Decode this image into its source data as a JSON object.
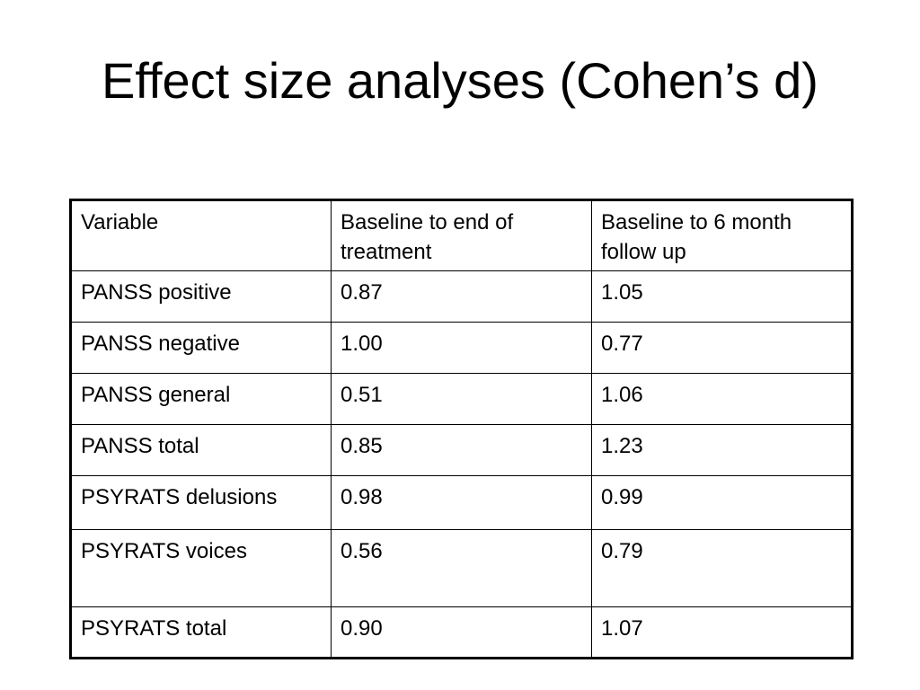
{
  "title": "Effect size analyses (Cohen’s d)",
  "table": {
    "header": [
      "Variable",
      "Baseline to end of treatment",
      "Baseline to 6 month follow up"
    ],
    "rows": [
      [
        "PANSS positive",
        "0.87",
        "1.05"
      ],
      [
        "PANSS negative",
        "1.00",
        "0.77"
      ],
      [
        "PANSS general",
        "0.51",
        "1.06"
      ],
      [
        "PANSS total",
        "0.85",
        "1.23"
      ],
      [
        "PSYRATS delusions",
        "0.98",
        "0.99"
      ],
      [
        "PSYRATS voices",
        "0.56",
        "0.79"
      ],
      [
        "PSYRATS total",
        "0.90",
        "1.07"
      ]
    ]
  }
}
